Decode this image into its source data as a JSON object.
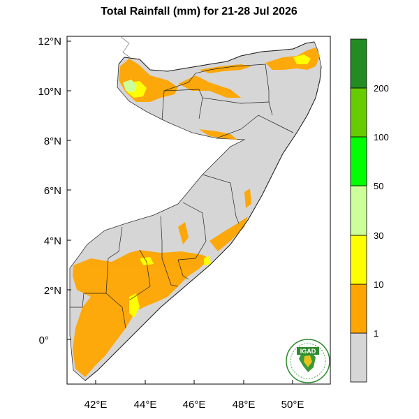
{
  "title": "Total Rainfall (mm) for 21-28 Jul 2026",
  "map": {
    "lat_ticks": [
      {
        "value": 12,
        "label": "12°N"
      },
      {
        "value": 10,
        "label": "10°N"
      },
      {
        "value": 8,
        "label": "8°N"
      },
      {
        "value": 6,
        "label": "6°N"
      },
      {
        "value": 4,
        "label": "4°N"
      },
      {
        "value": 2,
        "label": "2°N"
      },
      {
        "value": 0,
        "label": "0°"
      }
    ],
    "lon_ticks": [
      {
        "value": 42,
        "label": "42°E"
      },
      {
        "value": 44,
        "label": "44°E"
      },
      {
        "value": 46,
        "label": "46°E"
      },
      {
        "value": 48,
        "label": "48°E"
      },
      {
        "value": 50,
        "label": "50°E"
      }
    ]
  },
  "colorbar": {
    "bins": [
      {
        "label": "1",
        "color": "#d6d6d6"
      },
      {
        "label": "10",
        "color": "#ffa500"
      },
      {
        "label": "30",
        "color": "#ffff00"
      },
      {
        "label": "50",
        "color": "#ccff99"
      },
      {
        "label": "100",
        "color": "#00ff00"
      },
      {
        "label": "200",
        "color": "#66cc00"
      },
      {
        "label": "",
        "color": "#228b22"
      }
    ]
  },
  "logo": {
    "text": "IGAD"
  },
  "colors": {
    "land": "#d6d6d6",
    "light_rain": "#ffa500",
    "moderate_rain": "#ffff00",
    "heavy_rain": "#ccff99"
  }
}
